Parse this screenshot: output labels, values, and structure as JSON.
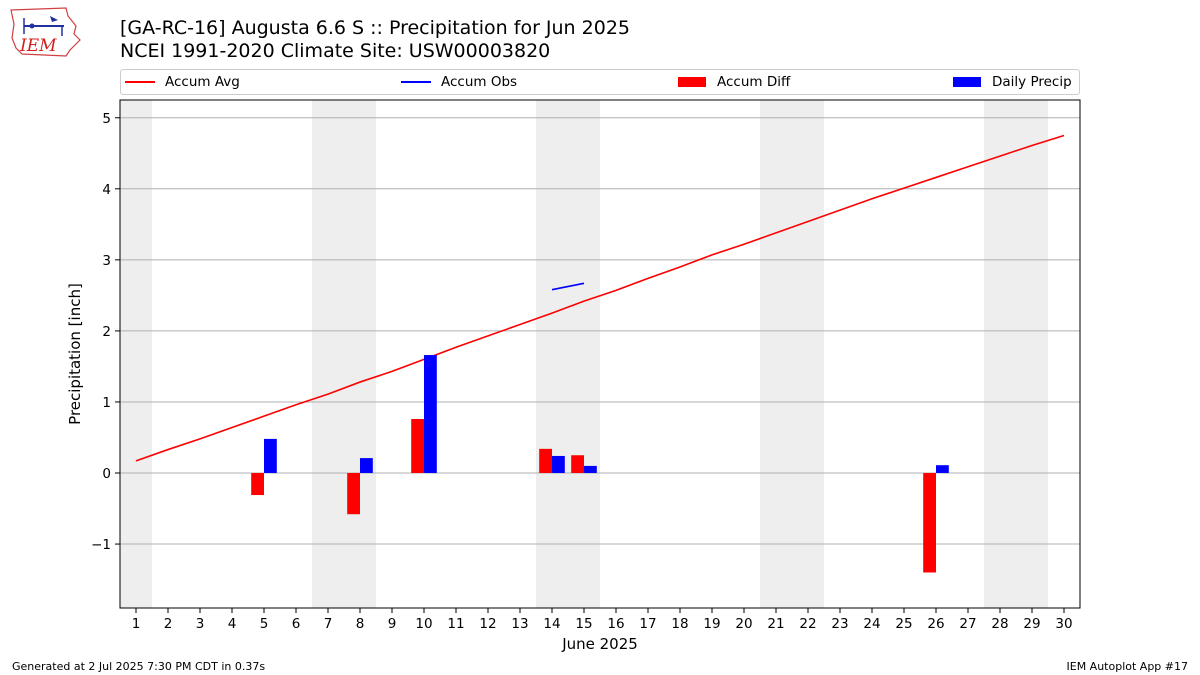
{
  "header": {
    "title_line1": "[GA-RC-16] Augusta 6.6 S :: Precipitation for Jun 2025",
    "title_line2": "NCEI 1991-2020 Climate Site: USW00003820"
  },
  "logo": {
    "text": "IEM",
    "icon": "iem-iowa-logo-icon"
  },
  "footer": {
    "left": "Generated at 2 Jul 2025 7:30 PM CDT in 0.37s",
    "right": "IEM Autoplot App #17"
  },
  "colors": {
    "accum_avg": "#ff0000",
    "accum_obs": "#0000ff",
    "accum_diff": "#ff0000",
    "daily_precip": "#0000ff",
    "weekend_shade": "#eeeeee",
    "grid": "#b0b0b0"
  },
  "chart_data": {
    "type": "bar",
    "title": "[GA-RC-16] Augusta 6.6 S :: Precipitation for Jun 2025",
    "subtitle": "NCEI 1991-2020 Climate Site: USW00003820",
    "xlabel": "June 2025",
    "ylabel": "Precipitation [inch]",
    "xlim": [
      0.5,
      30.5
    ],
    "ylim": [
      -1.9,
      5.25
    ],
    "yticks": [
      -1,
      0,
      1,
      2,
      3,
      4,
      5
    ],
    "ytick_labels": [
      "−1",
      "0",
      "1",
      "2",
      "3",
      "4",
      "5"
    ],
    "x": [
      1,
      2,
      3,
      4,
      5,
      6,
      7,
      8,
      9,
      10,
      11,
      12,
      13,
      14,
      15,
      16,
      17,
      18,
      19,
      20,
      21,
      22,
      23,
      24,
      25,
      26,
      27,
      28,
      29,
      30
    ],
    "xtick_labels": [
      "1",
      "2",
      "3",
      "4",
      "5",
      "6",
      "7",
      "8",
      "9",
      "10",
      "11",
      "12",
      "13",
      "14",
      "15",
      "16",
      "17",
      "18",
      "19",
      "20",
      "21",
      "22",
      "23",
      "24",
      "25",
      "26",
      "27",
      "28",
      "29",
      "30"
    ],
    "grid": "horizontal",
    "legend_position": "top",
    "shaded_days": [
      [
        0.5,
        1.5
      ],
      [
        6.5,
        8.5
      ],
      [
        13.5,
        15.5
      ],
      [
        20.5,
        22.5
      ],
      [
        27.5,
        29.5
      ]
    ],
    "series": [
      {
        "name": "Accum Avg",
        "kind": "line",
        "x": [
          1,
          2,
          3,
          4,
          5,
          6,
          7,
          8,
          9,
          10,
          11,
          12,
          13,
          14,
          15,
          16,
          17,
          18,
          19,
          20,
          21,
          22,
          23,
          24,
          25,
          26,
          27,
          28,
          29,
          30
        ],
        "values": [
          0.17,
          0.33,
          0.48,
          0.64,
          0.8,
          0.96,
          1.11,
          1.28,
          1.43,
          1.6,
          1.77,
          1.93,
          2.09,
          2.25,
          2.42,
          2.57,
          2.74,
          2.9,
          3.07,
          3.22,
          3.38,
          3.54,
          3.7,
          3.86,
          4.01,
          4.16,
          4.31,
          4.46,
          4.61,
          4.75
        ]
      },
      {
        "name": "Accum Obs",
        "kind": "line",
        "x": [
          14,
          15
        ],
        "values": [
          2.58,
          2.67
        ]
      },
      {
        "name": "Accum Diff",
        "kind": "bar",
        "x": [
          5,
          8,
          10,
          14,
          15,
          26
        ],
        "values": [
          -0.31,
          -0.58,
          0.76,
          0.34,
          0.25,
          -1.4
        ]
      },
      {
        "name": "Daily Precip",
        "kind": "bar",
        "x": [
          5,
          8,
          10,
          14,
          15,
          26
        ],
        "values": [
          0.48,
          0.21,
          1.66,
          0.24,
          0.1,
          0.11
        ]
      }
    ]
  }
}
